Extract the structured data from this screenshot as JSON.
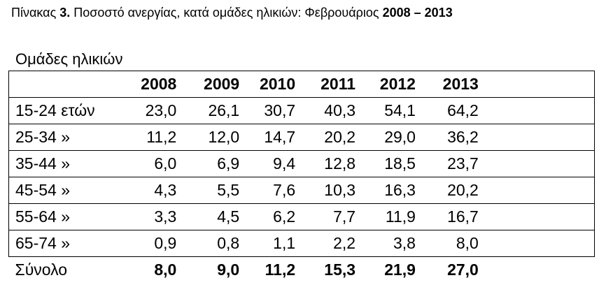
{
  "caption": {
    "prefix": "Πίνακας ",
    "number": "3.",
    "text": " Ποσοστό ανεργίας, κατά ομάδες ηλικιών: Φεβρουάριος ",
    "period": "2008 – 2013"
  },
  "group_label": "Ομάδες ηλικιών",
  "table": {
    "years": [
      "2008",
      "2009",
      "2010",
      "2011",
      "2012",
      "2013"
    ],
    "rows": [
      {
        "label": "15-24 ετών",
        "values": [
          "23,0",
          "26,1",
          "30,7",
          "40,3",
          "54,1",
          "64,2"
        ]
      },
      {
        "label": "25-34 »",
        "values": [
          "11,2",
          "12,0",
          "14,7",
          "20,2",
          "29,0",
          "36,2"
        ]
      },
      {
        "label": "35-44 »",
        "values": [
          "6,0",
          "6,9",
          "9,4",
          "12,8",
          "18,5",
          "23,7"
        ]
      },
      {
        "label": "45-54 »",
        "values": [
          "4,3",
          "5,5",
          "7,6",
          "10,3",
          "16,3",
          "20,2"
        ]
      },
      {
        "label": "55-64 »",
        "values": [
          "3,3",
          "4,5",
          "6,2",
          "7,7",
          "11,9",
          "16,7"
        ]
      },
      {
        "label": "65-74 »",
        "values": [
          "0,9",
          "0,8",
          "1,1",
          "2,2",
          "3,8",
          "8,0"
        ]
      }
    ],
    "total": {
      "label": "Σύνολο",
      "values": [
        "8,0",
        "9,0",
        "11,2",
        "15,3",
        "21,9",
        "27,0"
      ]
    }
  }
}
